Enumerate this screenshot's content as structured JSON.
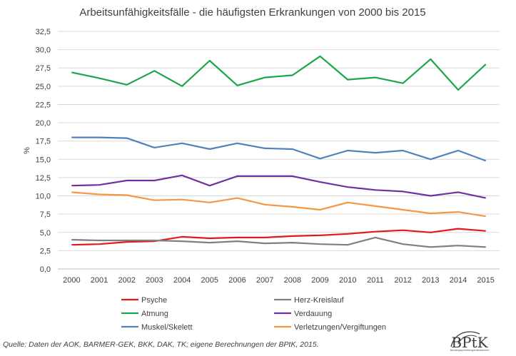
{
  "chart_data": {
    "type": "line",
    "title": "Arbeitsunfähigkeitsfälle - die häufigsten Erkrankungen von 2000 bis 2015",
    "xlabel": "",
    "ylabel": "%",
    "ylim": [
      0,
      32.5
    ],
    "ytick_labels": [
      "0,0",
      "2,5",
      "5,0",
      "7,5",
      "10,0",
      "12,5",
      "15,0",
      "17,5",
      "20,0",
      "22,5",
      "25,0",
      "27,5",
      "30,0",
      "32,5"
    ],
    "categories": [
      "2000",
      "2001",
      "2002",
      "2003",
      "2004",
      "2005",
      "2006",
      "2007",
      "2008",
      "2009",
      "2010",
      "2011",
      "2012",
      "2013",
      "2014",
      "2015"
    ],
    "grid": true,
    "legend_position": "bottom",
    "series": [
      {
        "name": "Psyche",
        "color": "#e31a1c",
        "values": [
          3.3,
          3.4,
          3.7,
          3.8,
          4.4,
          4.2,
          4.3,
          4.3,
          4.5,
          4.6,
          4.8,
          5.1,
          5.3,
          5.0,
          5.5,
          5.2
        ]
      },
      {
        "name": "Herz-Kreislauf",
        "color": "#7f7f7f",
        "values": [
          4.0,
          3.9,
          3.9,
          3.9,
          3.8,
          3.6,
          3.8,
          3.5,
          3.6,
          3.4,
          3.3,
          4.3,
          3.4,
          3.0,
          3.2,
          3.0
        ]
      },
      {
        "name": "Atmung",
        "color": "#1aa64a",
        "values": [
          26.9,
          26.1,
          25.2,
          27.1,
          25.0,
          28.5,
          25.1,
          26.2,
          26.5,
          29.1,
          25.9,
          26.2,
          25.4,
          28.7,
          24.5,
          28.0
        ]
      },
      {
        "name": "Verdauung",
        "color": "#7030a0",
        "values": [
          11.4,
          11.5,
          12.1,
          12.1,
          12.8,
          11.4,
          12.7,
          12.7,
          12.7,
          11.9,
          11.2,
          10.8,
          10.6,
          10.0,
          10.5,
          9.7
        ]
      },
      {
        "name": "Muskel/Skelett",
        "color": "#4f81bd",
        "values": [
          18.0,
          18.0,
          17.9,
          16.6,
          17.2,
          16.4,
          17.2,
          16.5,
          16.4,
          15.1,
          16.2,
          15.9,
          16.2,
          15.0,
          16.2,
          14.8
        ]
      },
      {
        "name": "Verletzungen/Vergiftungen",
        "color": "#f79646",
        "values": [
          10.5,
          10.2,
          10.1,
          9.4,
          9.5,
          9.1,
          9.7,
          8.8,
          8.5,
          8.1,
          9.1,
          8.6,
          8.1,
          7.6,
          7.8,
          7.2
        ]
      }
    ]
  },
  "source": "Quelle: Daten der AOK, BARMER-GEK, BKK, DAK, TK; eigene Berechnungen der BPtK, 2015.",
  "logo": {
    "text": "BPtK",
    "subtitle": "Bundespsychotherapeutenkammer"
  }
}
